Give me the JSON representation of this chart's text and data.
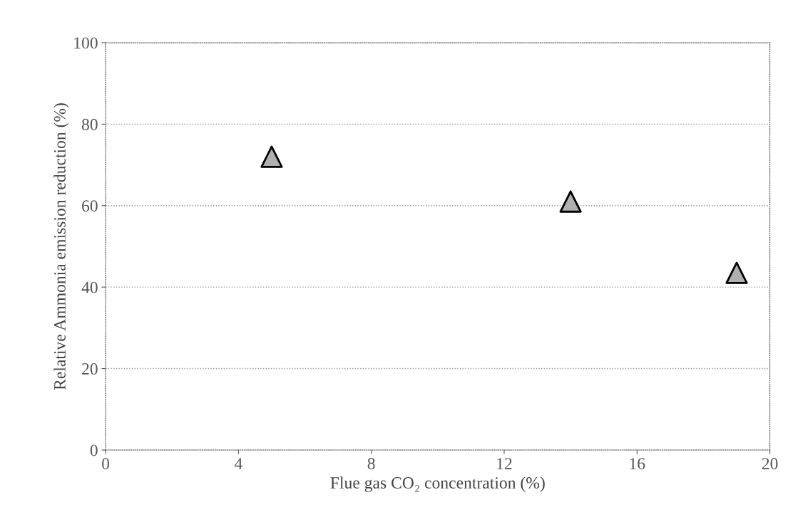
{
  "chart_data": {
    "type": "scatter",
    "xlabel": "Flue gas CO₂ concentration (%)",
    "ylabel": "Relative Ammonia emission reduction (%)",
    "x": [
      5,
      14,
      19
    ],
    "series": [
      {
        "color": "#b0b0b0",
        "values": [
          72,
          61,
          43.5
        ]
      }
    ],
    "xlim": [
      0,
      20
    ],
    "xticks": [
      0,
      4,
      8,
      12,
      16,
      20
    ],
    "ylim": [
      0,
      100
    ],
    "yticks": [
      0,
      20,
      40,
      60,
      80,
      100
    ],
    "grid": "y",
    "legend": false,
    "marker": "triangle"
  }
}
